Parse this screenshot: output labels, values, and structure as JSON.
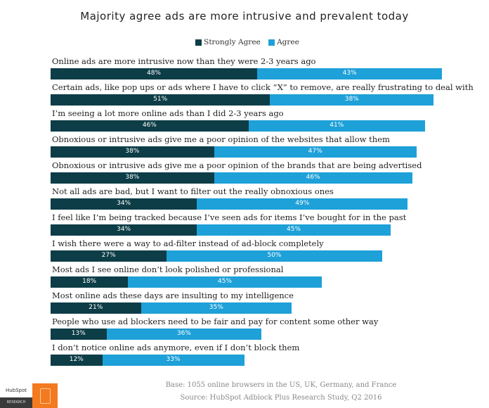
{
  "chart_data": {
    "type": "bar",
    "orientation": "horizontal",
    "stacked": true,
    "title": "Majority agree ads are more intrusive and prevalent today",
    "legend_position": "top",
    "categories": [
      "Online ads are more intrusive now than they were 2-3 years ago",
      "Certain ads, like pop ups or ads where I have to click “X” to remove, are really frustrating to deal with",
      "I’m seeing a lot more online ads than I did 2-3 years ago",
      "Obnoxious or intrusive ads give me a poor opinion of the websites that allow them",
      "Obnoxious or intrusive ads give me a poor opinion of the brands that are being advertised",
      "Not all ads are bad, but I want to filter out the really obnoxious ones",
      "I feel like I’m being tracked because I’ve seen ads for items I’ve bought for in the past",
      "I wish there were a way to ad-filter instead of ad-block completely",
      "Most ads I see online don’t look polished or professional",
      "Most online ads these days are insulting to my intelligence",
      "People who use ad blockers need to be fair and pay for content some other way",
      "I don’t notice online ads anymore, even if I don’t block them"
    ],
    "series": [
      {
        "name": "Strongly Agree",
        "color": "#0d3d47",
        "values": [
          48,
          51,
          46,
          38,
          38,
          34,
          34,
          27,
          18,
          21,
          13,
          12
        ]
      },
      {
        "name": "Agree",
        "color": "#1ea0d8",
        "values": [
          43,
          38,
          41,
          47,
          46,
          49,
          45,
          50,
          45,
          35,
          36,
          33
        ]
      }
    ],
    "unit": "%"
  },
  "footer": {
    "base": "Base: 1055 online browsers in the US, UK, Germany, and France",
    "source": "Source: HubSpot Adblock Plus Research Study, Q2 2016"
  },
  "logo": {
    "brand": "HubSpot",
    "sub": "RESEARCH"
  }
}
